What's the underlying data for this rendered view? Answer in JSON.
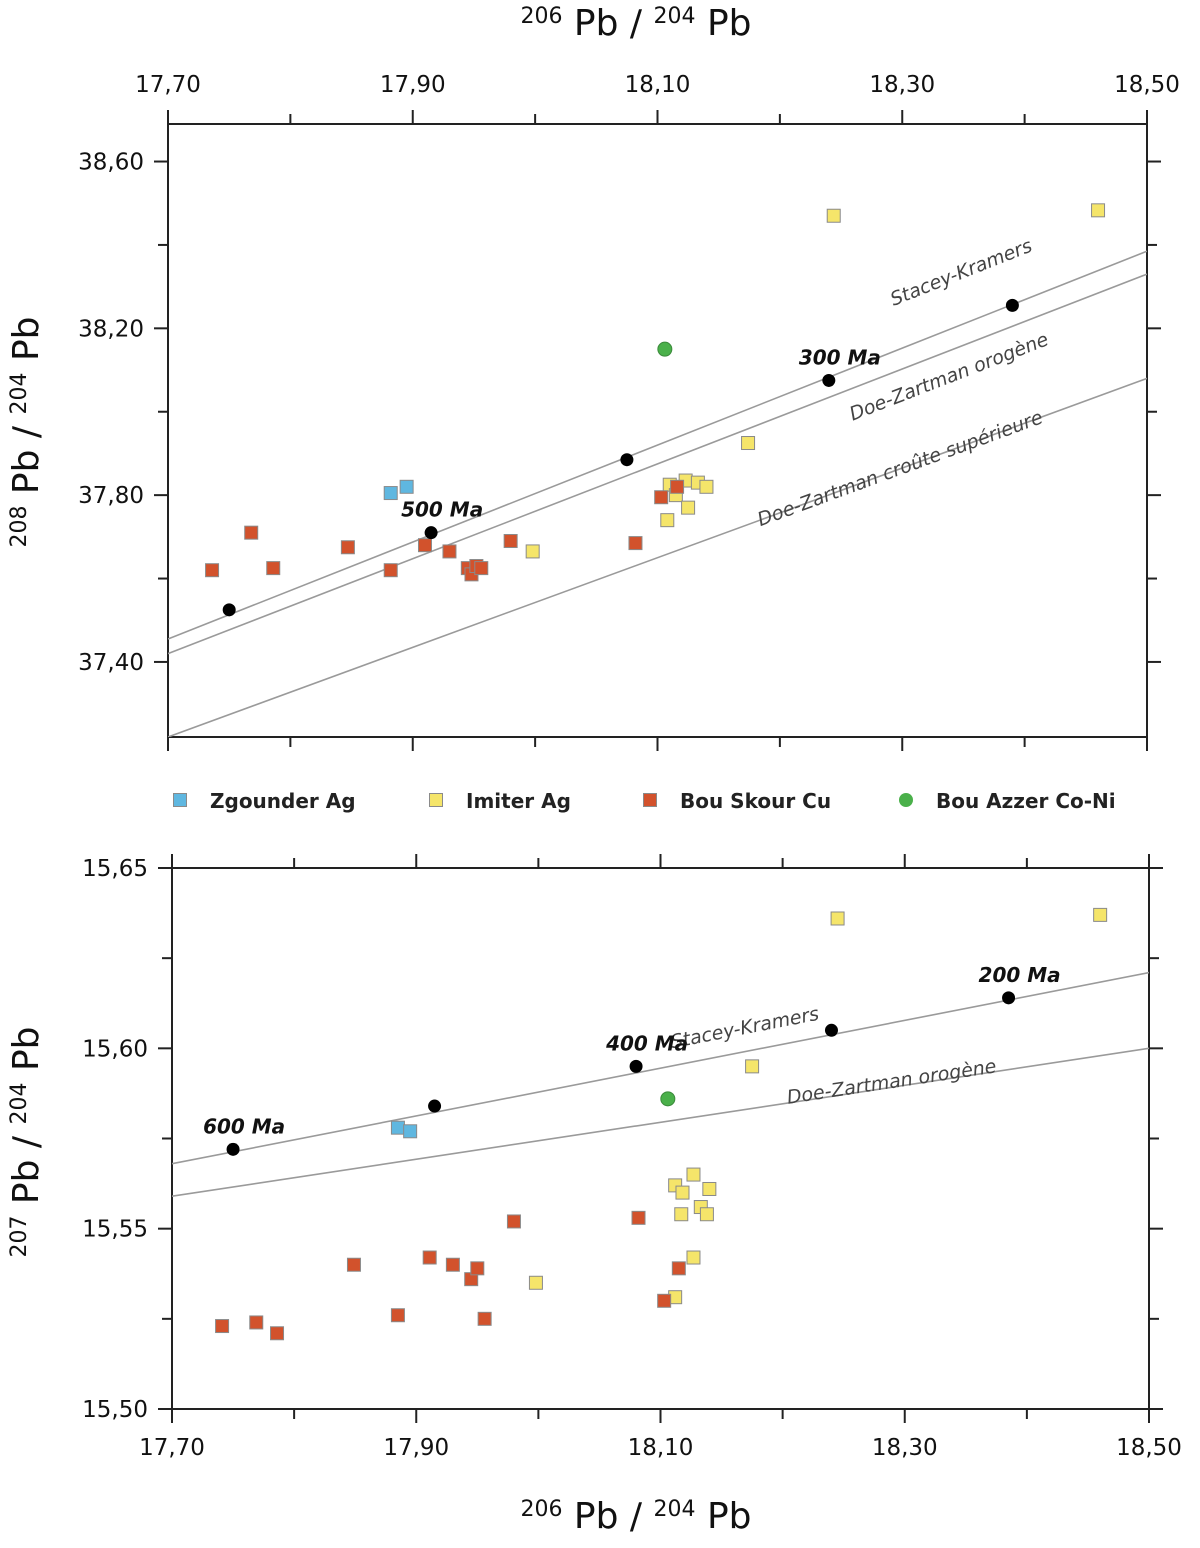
{
  "colors": {
    "zgounder": "#5fb7e0",
    "imiter": "#f5e56a",
    "bou_skour": "#d2522c",
    "bou_azzer": "#4ab04a",
    "model_point": "#000000",
    "curve": "#9a9a9a"
  },
  "chart_data": [
    {
      "type": "scatter",
      "xlabel": {
        "sup": "206",
        "main": "Pb / ",
        "sup2": "204",
        "main2": "Pb"
      },
      "ylabel": {
        "sup": "208",
        "main": "Pb / ",
        "sup2": "204",
        "main2": "Pb"
      },
      "xlim": [
        17.7,
        18.5
      ],
      "ylim": [
        37.22,
        38.69
      ],
      "x_ticks": [
        "17,70",
        "17,90",
        "18,10",
        "18,30",
        "18,50"
      ],
      "y_ticks": [
        "37,40",
        "37,80",
        "38,20",
        "38,60"
      ],
      "x_tick_values": [
        17.7,
        17.9,
        18.1,
        18.3,
        18.5
      ],
      "y_tick_values": [
        37.4,
        37.8,
        38.2,
        38.6
      ],
      "grid": false,
      "series": [
        {
          "name": "Zgounder Ag",
          "marker": "square",
          "color_key": "zgounder",
          "points": [
            [
              17.882,
              37.805
            ],
            [
              17.895,
              37.82
            ]
          ]
        },
        {
          "name": "Imiter Ag",
          "marker": "square",
          "color_key": "imiter",
          "points": [
            [
              18.244,
              38.47
            ],
            [
              18.46,
              38.483
            ],
            [
              18.174,
              37.925
            ],
            [
              17.998,
              37.665
            ],
            [
              18.11,
              37.825
            ],
            [
              18.115,
              37.8
            ],
            [
              18.123,
              37.835
            ],
            [
              18.133,
              37.83
            ],
            [
              18.14,
              37.82
            ],
            [
              18.125,
              37.77
            ],
            [
              18.108,
              37.74
            ]
          ]
        },
        {
          "name": "Bou Skour  Cu",
          "marker": "square",
          "color_key": "bou_skour",
          "points": [
            [
              17.736,
              37.62
            ],
            [
              17.768,
              37.71
            ],
            [
              17.786,
              37.625
            ],
            [
              17.847,
              37.675
            ],
            [
              17.882,
              37.62
            ],
            [
              17.91,
              37.68
            ],
            [
              17.93,
              37.665
            ],
            [
              17.945,
              37.625
            ],
            [
              17.948,
              37.61
            ],
            [
              17.952,
              37.63
            ],
            [
              17.956,
              37.625
            ],
            [
              17.98,
              37.69
            ],
            [
              18.082,
              37.685
            ],
            [
              18.103,
              37.795
            ],
            [
              18.116,
              37.82
            ]
          ]
        },
        {
          "name": "Bou Azzer  Co-Ni",
          "marker": "circle",
          "color_key": "bou_azzer",
          "points": [
            [
              18.106,
              38.15
            ]
          ]
        }
      ],
      "model_points": [
        [
          17.75,
          37.525
        ],
        [
          17.915,
          37.71
        ],
        [
          18.075,
          37.885
        ],
        [
          18.24,
          38.075
        ],
        [
          18.39,
          38.255
        ]
      ],
      "age_labels": [
        {
          "text": "500 Ma",
          "x": 17.915,
          "y": 37.71
        },
        {
          "text": "300 Ma",
          "x": 18.24,
          "y": 38.075
        }
      ],
      "curves": [
        {
          "name": "Stacey-Kramers",
          "from": [
            17.7,
            37.455
          ],
          "to": [
            18.5,
            38.385
          ],
          "label_at": [
            18.35,
            38.32
          ]
        },
        {
          "name": "Doe-Zartman orogène",
          "from": [
            17.7,
            37.42
          ],
          "to": [
            18.5,
            38.33
          ],
          "label_at": [
            18.34,
            38.07
          ]
        },
        {
          "name": "Doe-Zartman croûte supérieure",
          "from": [
            17.7,
            37.22
          ],
          "to": [
            18.5,
            38.08
          ],
          "label_at": [
            18.3,
            37.85
          ]
        }
      ]
    },
    {
      "type": "scatter",
      "xlabel": {
        "sup": "206",
        "main": "Pb / ",
        "sup2": "204",
        "main2": "Pb"
      },
      "ylabel": {
        "sup": "207",
        "main": "Pb / ",
        "sup2": "204",
        "main2": "Pb"
      },
      "xlim": [
        17.7,
        18.5
      ],
      "ylim": [
        15.5,
        15.65
      ],
      "x_ticks": [
        "17,70",
        "17,90",
        "18,10",
        "18,30",
        "18,50"
      ],
      "y_ticks": [
        "15,50",
        "15,55",
        "15,60",
        "15,65"
      ],
      "x_tick_values": [
        17.7,
        17.9,
        18.1,
        18.3,
        18.5
      ],
      "y_tick_values": [
        15.5,
        15.55,
        15.6,
        15.65
      ],
      "grid": false,
      "series": [
        {
          "name": "Zgounder Ag",
          "marker": "square",
          "color_key": "zgounder",
          "points": [
            [
              17.885,
              15.578
            ],
            [
              17.895,
              15.577
            ]
          ]
        },
        {
          "name": "Imiter Ag",
          "marker": "square",
          "color_key": "imiter",
          "points": [
            [
              18.245,
              15.636
            ],
            [
              18.46,
              15.637
            ],
            [
              18.175,
              15.595
            ],
            [
              17.998,
              15.535
            ],
            [
              18.112,
              15.562
            ],
            [
              18.118,
              15.56
            ],
            [
              18.127,
              15.565
            ],
            [
              18.14,
              15.561
            ],
            [
              18.133,
              15.556
            ],
            [
              18.117,
              15.554
            ],
            [
              18.138,
              15.554
            ],
            [
              18.127,
              15.542
            ],
            [
              18.112,
              15.531
            ]
          ]
        },
        {
          "name": "Bou Skour  Cu",
          "marker": "square",
          "color_key": "bou_skour",
          "points": [
            [
              17.741,
              15.523
            ],
            [
              17.769,
              15.524
            ],
            [
              17.786,
              15.521
            ],
            [
              17.849,
              15.54
            ],
            [
              17.885,
              15.526
            ],
            [
              17.911,
              15.542
            ],
            [
              17.93,
              15.54
            ],
            [
              17.945,
              15.536
            ],
            [
              17.95,
              15.539
            ],
            [
              17.956,
              15.525
            ],
            [
              17.98,
              15.552
            ],
            [
              18.082,
              15.553
            ],
            [
              18.103,
              15.53
            ],
            [
              18.115,
              15.539
            ]
          ]
        },
        {
          "name": "Bou Azzer  Co-Ni",
          "marker": "circle",
          "color_key": "bou_azzer",
          "points": [
            [
              18.106,
              15.586
            ]
          ]
        }
      ],
      "model_points": [
        [
          17.75,
          15.572
        ],
        [
          17.915,
          15.584
        ],
        [
          18.08,
          15.595
        ],
        [
          18.24,
          15.605
        ],
        [
          18.385,
          15.614
        ]
      ],
      "age_labels": [
        {
          "text": "600 Ma",
          "x": 17.75,
          "y": 15.572
        },
        {
          "text": "400 Ma",
          "x": 18.08,
          "y": 15.595
        },
        {
          "text": "200 Ma",
          "x": 18.385,
          "y": 15.614
        }
      ],
      "curves": [
        {
          "name": "Stacey-Kramers",
          "from": [
            17.7,
            15.568
          ],
          "to": [
            18.5,
            15.621
          ],
          "label_at": [
            18.17,
            15.604
          ]
        },
        {
          "name": "Doe-Zartman orogène",
          "from": [
            17.7,
            15.559
          ],
          "to": [
            18.5,
            15.6
          ],
          "label_at": [
            18.29,
            15.589
          ]
        }
      ]
    }
  ],
  "legend": [
    {
      "label": "Zgounder Ag",
      "color_key": "zgounder",
      "marker": "square"
    },
    {
      "label": "Imiter Ag",
      "color_key": "imiter",
      "marker": "square"
    },
    {
      "label": "Bou Skour  Cu",
      "color_key": "bou_skour",
      "marker": "square"
    },
    {
      "label": "Bou Azzer  Co-Ni",
      "color_key": "bou_azzer",
      "marker": "circle"
    }
  ]
}
